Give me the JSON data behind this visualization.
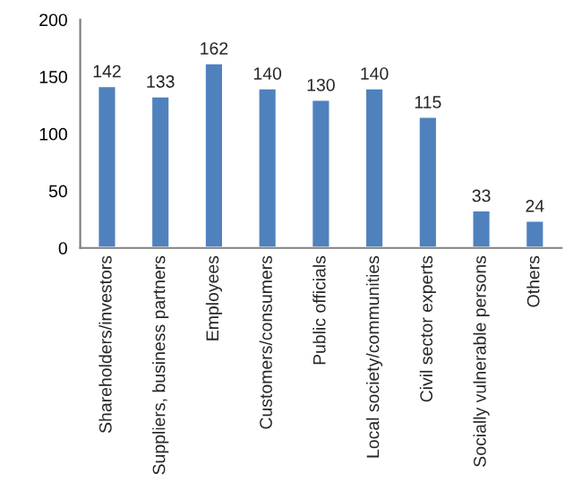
{
  "chart_data": {
    "type": "bar",
    "categories": [
      "Shareholders/investors",
      "Suppliers, business partners",
      "Employees",
      "Customers/consumers",
      "Public officials",
      "Local society/communities",
      "Civil sector experts",
      "Socially vulnerable persons",
      "Others"
    ],
    "values": [
      142,
      133,
      162,
      140,
      130,
      140,
      115,
      33,
      24
    ],
    "color": "#4f81bd",
    "ylim": [
      0,
      200
    ],
    "yticks": [
      0,
      50,
      100,
      150,
      200
    ],
    "grid": false,
    "data_labels": true
  }
}
